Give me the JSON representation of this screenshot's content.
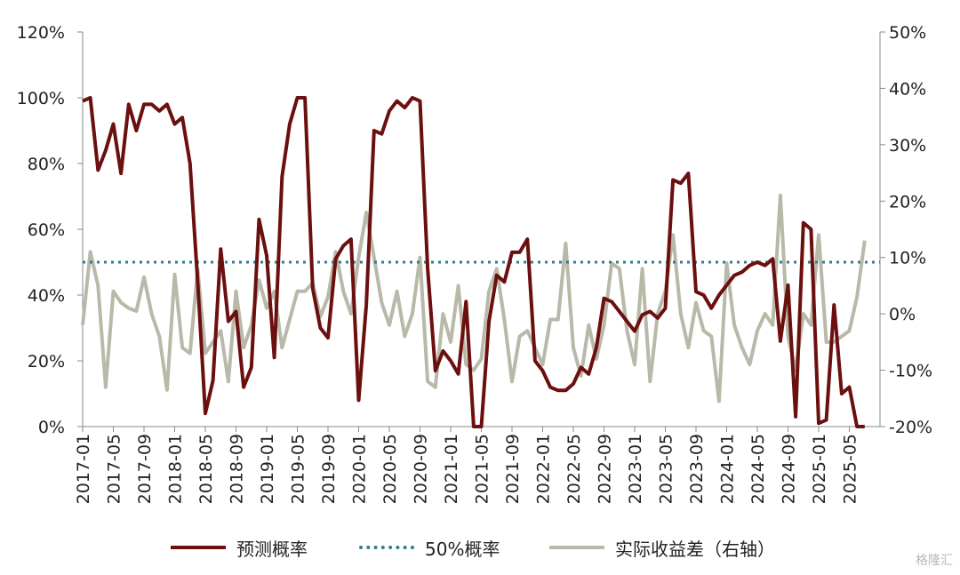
{
  "chart_data": {
    "type": "line",
    "title": "",
    "colors": {
      "predicted": "#6b0f0f",
      "threshold": "#2e7d8c",
      "spread": "#b9b9a9"
    },
    "left_axis": {
      "ticks": [
        "0%",
        "20%",
        "40%",
        "60%",
        "80%",
        "100%",
        "120%"
      ],
      "ylim": [
        0,
        120
      ]
    },
    "right_axis": {
      "ticks": [
        "-20%",
        "-10%",
        "0%",
        "10%",
        "20%",
        "30%",
        "40%",
        "50%"
      ],
      "ylim": [
        -20,
        50
      ]
    },
    "x_tick_labels": [
      "2017-01",
      "2017-05",
      "2017-09",
      "2018-01",
      "2018-05",
      "2018-09",
      "2019-01",
      "2019-05",
      "2019-09",
      "2020-01",
      "2020-05",
      "2020-09",
      "2021-01",
      "2021-05",
      "2021-09",
      "2022-01",
      "2022-05",
      "2022-09",
      "2023-01",
      "2023-05",
      "2023-09",
      "2024-01",
      "2024-05",
      "2024-09",
      "2025-01",
      "2025-05"
    ],
    "x_start": "2017-01",
    "x_end": "2025-09",
    "series": [
      {
        "name": "预测概率",
        "axis": "left",
        "values": [
          99,
          100,
          78,
          84,
          92,
          77,
          98,
          90,
          98,
          98,
          96,
          98,
          92,
          94,
          80,
          44,
          4,
          14,
          54,
          32,
          35,
          12,
          18,
          63,
          52,
          21,
          76,
          92,
          100,
          100,
          42,
          30,
          27,
          51,
          55,
          57,
          8,
          37,
          90,
          89,
          96,
          99,
          97,
          100,
          99,
          48,
          17,
          23,
          20,
          16,
          38,
          0,
          0,
          32,
          46,
          44,
          53,
          53,
          57,
          20,
          17,
          12,
          11,
          11,
          13,
          18,
          16,
          24,
          39,
          38,
          35,
          32,
          29,
          34,
          35,
          33,
          36,
          75,
          74,
          77,
          41,
          40,
          36,
          40,
          43,
          46,
          47,
          49,
          50,
          49,
          51,
          26,
          43,
          3,
          62,
          60,
          1,
          2,
          37,
          10,
          12,
          0,
          0
        ]
      },
      {
        "name": "50%概率",
        "axis": "left",
        "constant": 50
      },
      {
        "name": "实际收益差（右轴）",
        "axis": "right",
        "values": [
          -2,
          11,
          5,
          -13,
          4,
          2,
          1,
          0.5,
          6.5,
          0,
          -4,
          -13.5,
          7,
          -6,
          -7,
          8,
          -7,
          -5,
          -3,
          -12,
          4,
          -6,
          -2,
          6,
          1,
          4,
          -6,
          -1,
          4,
          4,
          5.5,
          -0.5,
          3,
          11,
          4,
          0,
          10,
          18,
          10,
          2,
          -2,
          4,
          -4,
          0,
          10,
          -12,
          -13,
          0,
          -5,
          5,
          -9,
          -10,
          -8,
          4,
          8,
          -1,
          -12,
          -4,
          -3,
          -6,
          -9,
          -1,
          -1,
          12.5,
          -6,
          -11,
          -2,
          -8,
          -2,
          9,
          8,
          -3,
          -9,
          8,
          -12,
          0,
          4,
          14,
          0,
          -6,
          2,
          -3,
          -4,
          -15.5,
          9,
          -2,
          -6,
          -9,
          -3,
          0,
          -2,
          21,
          -4,
          -10,
          0,
          -2,
          14,
          -5,
          -5,
          -4,
          -3,
          3,
          13
        ]
      }
    ]
  },
  "watermark": "格隆汇"
}
